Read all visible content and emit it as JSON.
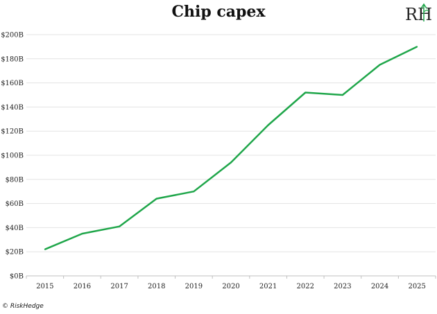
{
  "chart_data": {
    "type": "line",
    "title": "Chip capex",
    "xlabel": "",
    "ylabel": "",
    "x": [
      "2015",
      "2016",
      "2017",
      "2018",
      "2019",
      "2020",
      "2021",
      "2022",
      "2023",
      "2024",
      "2025"
    ],
    "series": [
      {
        "values": [
          22,
          35,
          41,
          64,
          70,
          94,
          125,
          152,
          150,
          175,
          190
        ]
      }
    ],
    "ylim": [
      0,
      200
    ],
    "yticks": [
      0,
      20,
      40,
      60,
      80,
      100,
      120,
      140,
      160,
      180,
      200
    ],
    "ytick_labels": [
      "$0B",
      "$20B",
      "$40B",
      "$60B",
      "$80B",
      "$100B",
      "$120B",
      "$140B",
      "$160B",
      "$180B",
      "$200B"
    ],
    "grid": true,
    "line_color": "#1fa64a"
  },
  "logo_text": "RH",
  "credit": "© RiskHedge"
}
